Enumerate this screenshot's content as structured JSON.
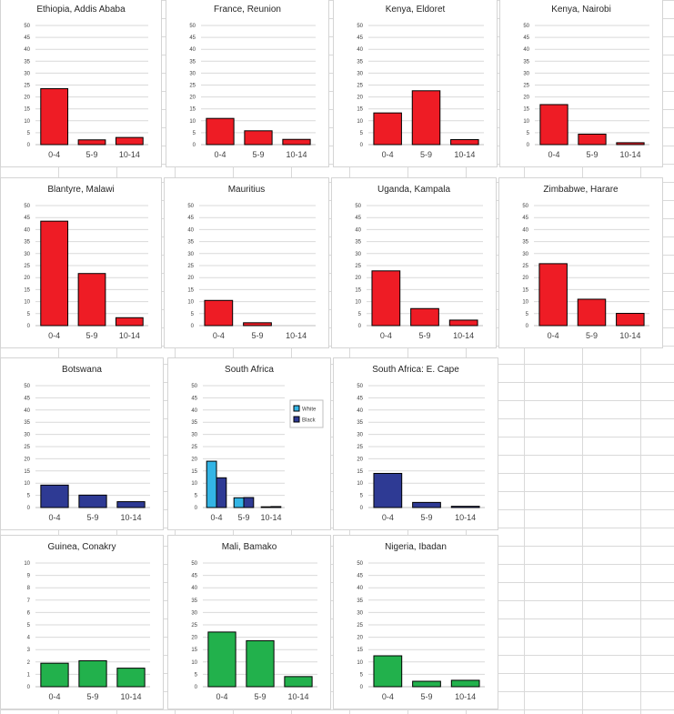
{
  "colors": {
    "red": "#ee1c25",
    "navy": "#2e3a94",
    "sky": "#33b5e5",
    "green": "#22b14c"
  },
  "chart_data": [
    {
      "type": "bar",
      "title": "Ethiopia, Addis Ababa",
      "categories": [
        "0-4",
        "5-9",
        "10-14"
      ],
      "yticks": [
        "0",
        "5",
        "10",
        "15",
        "20",
        "25",
        "30",
        "35",
        "40",
        "45",
        "50"
      ],
      "ylim": [
        0,
        50
      ],
      "series": [
        {
          "values": [
            23.5,
            2,
            3
          ],
          "color": "#ee1c25"
        }
      ]
    },
    {
      "type": "bar",
      "title": "France, Reunion",
      "categories": [
        "0-4",
        "5-9",
        "10-14"
      ],
      "yticks": [
        "0",
        "5",
        "10",
        "15",
        "20",
        "25",
        "30",
        "35",
        "40",
        "45",
        "50"
      ],
      "ylim": [
        0,
        50
      ],
      "series": [
        {
          "values": [
            11,
            5.8,
            2.2
          ],
          "color": "#ee1c25"
        }
      ]
    },
    {
      "type": "bar",
      "title": "Kenya, Eldoret",
      "categories": [
        "0-4",
        "5-9",
        "10-14"
      ],
      "yticks": [
        "0",
        "5",
        "10",
        "15",
        "20",
        "25",
        "30",
        "35",
        "40",
        "45",
        "50"
      ],
      "ylim": [
        0,
        50
      ],
      "series": [
        {
          "values": [
            13.3,
            22.6,
            2.1
          ],
          "color": "#ee1c25"
        }
      ]
    },
    {
      "type": "bar",
      "title": "Kenya, Nairobi",
      "categories": [
        "0-4",
        "5-9",
        "10-14"
      ],
      "yticks": [
        "0",
        "5",
        "10",
        "15",
        "20",
        "25",
        "30",
        "35",
        "40",
        "45",
        "50"
      ],
      "ylim": [
        0,
        50
      ],
      "series": [
        {
          "values": [
            16.8,
            4.4,
            0.8
          ],
          "color": "#ee1c25"
        }
      ]
    },
    {
      "type": "bar",
      "title": "Blantyre, Malawi",
      "categories": [
        "0-4",
        "5-9",
        "10-14"
      ],
      "yticks": [
        "0",
        "5",
        "10",
        "15",
        "20",
        "25",
        "30",
        "35",
        "40",
        "45",
        "50"
      ],
      "ylim": [
        0,
        50
      ],
      "series": [
        {
          "values": [
            43.5,
            21.7,
            3.3
          ],
          "color": "#ee1c25"
        }
      ]
    },
    {
      "type": "bar",
      "title": "Mauritius",
      "categories": [
        "0-4",
        "5-9",
        "10-14"
      ],
      "yticks": [
        "0",
        "5",
        "10",
        "15",
        "20",
        "25",
        "30",
        "35",
        "40",
        "45",
        "50"
      ],
      "ylim": [
        0,
        50
      ],
      "series": [
        {
          "values": [
            10.5,
            1.2,
            0
          ],
          "color": "#ee1c25"
        }
      ]
    },
    {
      "type": "bar",
      "title": "Uganda, Kampala",
      "categories": [
        "0-4",
        "5-9",
        "10-14"
      ],
      "yticks": [
        "0",
        "5",
        "10",
        "15",
        "20",
        "25",
        "30",
        "35",
        "40",
        "45",
        "50"
      ],
      "ylim": [
        0,
        50
      ],
      "series": [
        {
          "values": [
            22.8,
            7.1,
            2.3
          ],
          "color": "#ee1c25"
        }
      ]
    },
    {
      "type": "bar",
      "title": "Zimbabwe, Harare",
      "categories": [
        "0-4",
        "5-9",
        "10-14"
      ],
      "yticks": [
        "0",
        "5",
        "10",
        "15",
        "20",
        "25",
        "30",
        "35",
        "40",
        "45",
        "50"
      ],
      "ylim": [
        0,
        50
      ],
      "series": [
        {
          "values": [
            25.8,
            11,
            5.1
          ],
          "color": "#ee1c25"
        }
      ]
    },
    {
      "type": "bar",
      "title": "Botswana",
      "categories": [
        "0-4",
        "5-9",
        "10-14"
      ],
      "yticks": [
        "0",
        "5",
        "10",
        "15",
        "20",
        "25",
        "30",
        "35",
        "40",
        "45",
        "50"
      ],
      "ylim": [
        0,
        50
      ],
      "series": [
        {
          "values": [
            9.2,
            5.1,
            2.4
          ],
          "color": "#2e3a94"
        }
      ]
    },
    {
      "type": "bar",
      "title": "South Africa",
      "categories": [
        "0-4",
        "5-9",
        "10-14"
      ],
      "yticks": [
        "0",
        "5",
        "10",
        "15",
        "20",
        "25",
        "30",
        "35",
        "40",
        "45",
        "50"
      ],
      "ylim": [
        0,
        50
      ],
      "legend": "right",
      "series": [
        {
          "name": "White",
          "values": [
            19,
            4,
            0.3
          ],
          "color": "#33b5e5"
        },
        {
          "name": "Black",
          "values": [
            12.2,
            4.1,
            0.4
          ],
          "color": "#2e3a94"
        }
      ]
    },
    {
      "type": "bar",
      "title": "South Africa: E. Cape",
      "categories": [
        "0-4",
        "5-9",
        "10-14"
      ],
      "yticks": [
        "0",
        "5",
        "10",
        "15",
        "20",
        "25",
        "30",
        "35",
        "40",
        "45",
        "50"
      ],
      "ylim": [
        0,
        50
      ],
      "series": [
        {
          "values": [
            14,
            2.1,
            0.5
          ],
          "color": "#2e3a94"
        }
      ]
    },
    {
      "type": "bar",
      "title": "Guinea, Conakry",
      "categories": [
        "0-4",
        "5-9",
        "10-14"
      ],
      "yticks": [
        "0",
        "1",
        "2",
        "3",
        "4",
        "5",
        "6",
        "7",
        "8",
        "9",
        "10"
      ],
      "ylim": [
        0,
        10
      ],
      "series": [
        {
          "values": [
            1.9,
            2.1,
            1.5
          ],
          "color": "#22b14c"
        }
      ]
    },
    {
      "type": "bar",
      "title": "Mali, Bamako",
      "categories": [
        "0-4",
        "5-9",
        "10-14"
      ],
      "yticks": [
        "0",
        "5",
        "10",
        "15",
        "20",
        "25",
        "30",
        "35",
        "40",
        "45",
        "50"
      ],
      "ylim": [
        0,
        50
      ],
      "series": [
        {
          "values": [
            22.1,
            18.6,
            4.1
          ],
          "color": "#22b14c"
        }
      ]
    },
    {
      "type": "bar",
      "title": "Nigeria, Ibadan",
      "categories": [
        "0-4",
        "5-9",
        "10-14"
      ],
      "yticks": [
        "0",
        "5",
        "10",
        "15",
        "20",
        "25",
        "30",
        "35",
        "40",
        "45",
        "50"
      ],
      "ylim": [
        0,
        50
      ],
      "series": [
        {
          "values": [
            12.5,
            2.2,
            2.6
          ],
          "color": "#22b14c"
        }
      ]
    }
  ]
}
